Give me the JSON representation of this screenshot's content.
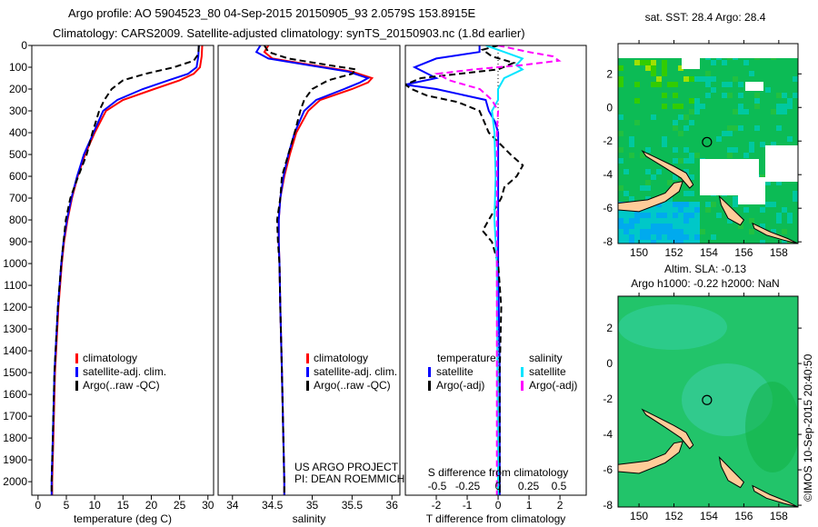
{
  "title_line1": "Argo profile: AO 5904523_80 04-Sep-2015 20150905_93 2.0579S 153.8915E",
  "title_line2": "Climatology: CARS2009. Satellite-adjusted climatology: synTS_20150903.nc (1.8d earlier)",
  "credit_line1": "US ARGO PROJECT",
  "credit_line2": "PI: DEAN ROEMMICH",
  "side_stamp": "©IMOS 10-Sep-2015 20:40:50",
  "colors": {
    "climatology": "#ff0000",
    "satellite": "#0000ff",
    "argo": "#000000",
    "sal_satellite": "#00e5ff",
    "sal_argo": "#ff00ff",
    "land": "#ffcc99"
  },
  "chart_data": [
    {
      "type": "line",
      "name": "temperature-profile",
      "xlabel": "temperature (deg C)",
      "ylabel": "depth",
      "xlim": [
        -1.1,
        31
      ],
      "ylim": [
        2062,
        0
      ],
      "xticks": [
        0,
        5,
        10,
        15,
        20,
        25,
        30
      ],
      "yticks": [
        0,
        100,
        200,
        300,
        400,
        500,
        600,
        700,
        800,
        900,
        1000,
        1100,
        1200,
        1300,
        1400,
        1500,
        1600,
        1700,
        1800,
        1900,
        2000
      ],
      "legend": [
        "climatology",
        "satellite-adj. clim.",
        "Argo(..raw -QC)"
      ],
      "series": [
        {
          "name": "climatology",
          "color": "#ff0000",
          "dash": false,
          "depth": [
            0,
            50,
            100,
            130,
            160,
            200,
            250,
            300,
            400,
            500,
            600,
            700,
            800,
            900,
            1000,
            1200,
            1500,
            1800,
            2000,
            2060
          ],
          "values": [
            29,
            28.9,
            28.6,
            27.5,
            25,
            20.5,
            15,
            12,
            10,
            8.3,
            7,
            6,
            5.2,
            4.6,
            4.2,
            3.6,
            3,
            2.7,
            2.5,
            2.5
          ]
        },
        {
          "name": "satellite-adj. clim.",
          "color": "#0000ff",
          "dash": false,
          "depth": [
            0,
            50,
            100,
            130,
            160,
            200,
            250,
            300,
            400,
            500,
            600,
            700,
            800,
            900,
            1000,
            1200,
            1500,
            1800,
            2000,
            2060
          ],
          "values": [
            28.4,
            28.3,
            28,
            26.5,
            23,
            18.5,
            14,
            11.5,
            9.8,
            8.1,
            6.9,
            5.9,
            5.1,
            4.5,
            4.1,
            3.5,
            2.9,
            2.6,
            2.4,
            2.4
          ]
        },
        {
          "name": "Argo(..raw -QC)",
          "color": "#000000",
          "dash": true,
          "depth": [
            0,
            40,
            70,
            100,
            130,
            160,
            200,
            250,
            300,
            400,
            500,
            600,
            700,
            800,
            900,
            1000,
            1200,
            1500,
            1800,
            2000,
            2060
          ],
          "values": [
            28.4,
            28.3,
            27.5,
            24,
            19,
            15,
            13,
            11.7,
            10.8,
            9.6,
            8.6,
            7.1,
            5.7,
            4.9,
            4.5,
            4.1,
            3.5,
            2.9,
            2.6,
            2.4,
            2.4
          ]
        }
      ]
    },
    {
      "type": "line",
      "name": "salinity-profile",
      "xlabel": "salinity",
      "ylabel": "depth",
      "xlim": [
        33.82,
        36.1
      ],
      "ylim": [
        2062,
        0
      ],
      "xticks": [
        34,
        34.5,
        35,
        35.5,
        36
      ],
      "legend": [
        "climatology",
        "satellite-adj. clim.",
        "Argo(..raw -QC)"
      ],
      "series": [
        {
          "name": "climatology",
          "color": "#ff0000",
          "dash": false,
          "depth": [
            0,
            30,
            60,
            90,
            120,
            150,
            170,
            200,
            250,
            300,
            400,
            500,
            600,
            700,
            800,
            900,
            1000,
            1200,
            1500,
            2000,
            2060
          ],
          "values": [
            34.45,
            34.4,
            34.5,
            35.0,
            35.5,
            35.75,
            35.7,
            35.5,
            35.1,
            34.95,
            34.8,
            34.72,
            34.65,
            34.6,
            34.58,
            34.58,
            34.59,
            34.6,
            34.62,
            34.65,
            34.65
          ]
        },
        {
          "name": "satellite-adj. clim.",
          "color": "#0000ff",
          "dash": false,
          "depth": [
            0,
            30,
            60,
            90,
            120,
            150,
            170,
            200,
            250,
            300,
            400,
            500,
            600,
            700,
            800,
            900,
            1000,
            1200,
            1500,
            2000,
            2060
          ],
          "values": [
            34.35,
            34.3,
            34.45,
            34.95,
            35.45,
            35.7,
            35.6,
            35.4,
            35.05,
            34.9,
            34.78,
            34.7,
            34.64,
            34.6,
            34.58,
            34.58,
            34.59,
            34.6,
            34.62,
            34.65,
            34.65
          ]
        },
        {
          "name": "Argo(..raw -QC)",
          "color": "#000000",
          "dash": true,
          "depth": [
            0,
            30,
            60,
            90,
            110,
            130,
            160,
            200,
            250,
            300,
            400,
            500,
            600,
            700,
            800,
            900,
            1000,
            1200,
            1500,
            2000,
            2060
          ],
          "values": [
            34.4,
            34.45,
            34.7,
            35.2,
            35.55,
            35.5,
            35.2,
            35.0,
            34.9,
            34.85,
            34.78,
            34.7,
            34.62,
            34.6,
            34.56,
            34.57,
            34.59,
            34.6,
            34.62,
            34.65,
            34.65
          ]
        }
      ]
    },
    {
      "type": "line",
      "name": "difference-profile",
      "xlabel": "T difference from climatology",
      "x2label": "S difference from climatology",
      "xlim": [
        -3,
        2.85
      ],
      "ylim": [
        2062,
        0
      ],
      "xticks": [
        -2,
        -1,
        0,
        1,
        2
      ],
      "x2ticks": [
        -0.5,
        -0.25,
        0,
        0.25,
        0.5
      ],
      "x2tick_labels": [
        "-0.5",
        "-0.25",
        "0",
        "0.25",
        "0.5"
      ],
      "legend_temperature": {
        "title": "temperature",
        "items": [
          "satellite",
          "Argo(-adj)"
        ]
      },
      "legend_salinity": {
        "title": "salinity",
        "items": [
          "satellite",
          "Argo(-adj)"
        ]
      },
      "series": [
        {
          "name": "T satellite",
          "color": "#0000ff",
          "dash": false,
          "axis": "T",
          "depth": [
            0,
            30,
            60,
            100,
            150,
            180,
            200,
            250,
            300,
            350,
            400,
            600,
            800,
            1000,
            1500,
            2000,
            2060
          ],
          "values": [
            -0.6,
            -0.6,
            -2,
            -2.7,
            -2,
            -3,
            -2,
            -0.4,
            -0.3,
            -0.1,
            0,
            0,
            0,
            0,
            0.05,
            0.05,
            0.05
          ]
        },
        {
          "name": "T Argo(-adj)",
          "color": "#000000",
          "dash": true,
          "axis": "T",
          "depth": [
            0,
            20,
            50,
            80,
            110,
            150,
            180,
            200,
            230,
            260,
            300,
            400,
            500,
            550,
            600,
            650,
            700,
            800,
            850,
            900,
            1000,
            1200,
            1500,
            2000,
            2060
          ],
          "values": [
            0,
            -0.5,
            -0.2,
            0.5,
            0,
            -2.5,
            -3,
            -2.8,
            -2.3,
            -1.3,
            -0.6,
            -0.3,
            0.4,
            0.8,
            0.6,
            0.2,
            0.1,
            -0.3,
            -0.5,
            -0.2,
            0,
            0.1,
            0.05,
            0.05,
            0.05
          ]
        },
        {
          "name": "S satellite",
          "color": "#00e5ff",
          "dash": false,
          "axis": "S",
          "depth": [
            0,
            30,
            60,
            90,
            110,
            150,
            200,
            250,
            300,
            400,
            600,
            800,
            1000,
            2000,
            2060
          ],
          "values": [
            -0.1,
            0.05,
            0.2,
            0.15,
            0.2,
            0.05,
            0,
            0,
            -0.05,
            -0.03,
            -0.02,
            -0.03,
            -0.01,
            0,
            0
          ]
        },
        {
          "name": "S Argo(-adj)",
          "color": "#ff00ff",
          "dash": true,
          "axis": "S",
          "depth": [
            0,
            30,
            50,
            70,
            90,
            110,
            130,
            160,
            200,
            250,
            300,
            400,
            600,
            1000,
            2000,
            2060
          ],
          "values": [
            0,
            0.25,
            0.45,
            0.5,
            0.2,
            -0.2,
            -0.5,
            -0.4,
            -0.15,
            -0.05,
            0,
            -0.01,
            -0.01,
            -0.01,
            -0.01,
            -0.01
          ]
        }
      ]
    },
    {
      "type": "heatmap",
      "name": "sst-map",
      "title": "sat. SST: 28.4 Argo: 28.4",
      "xlim": [
        148.8,
        159.1
      ],
      "ylim": [
        -8.1,
        3.8
      ],
      "xticks": [
        150,
        152,
        154,
        156,
        158
      ],
      "yticks": [
        2,
        0,
        -2,
        -4,
        -6,
        -8
      ],
      "marker": {
        "lon": 153.89,
        "lat": -2.06
      }
    },
    {
      "type": "heatmap",
      "name": "sla-map",
      "title": "Altim. SLA: -0.13",
      "subtitle": "Argo h1000: -0.22 h2000: NaN",
      "xlim": [
        148.8,
        159.1
      ],
      "ylim": [
        -8.1,
        3.8
      ],
      "xticks": [
        150,
        152,
        154,
        156,
        158
      ],
      "yticks": [
        2,
        0,
        -2,
        -4,
        -6,
        -8
      ],
      "marker": {
        "lon": 153.89,
        "lat": -2.06
      }
    }
  ]
}
